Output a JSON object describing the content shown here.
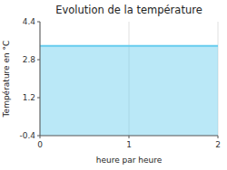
{
  "chart_data": {
    "type": "area",
    "title": "Evolution de la température",
    "x_label": "heure par heure",
    "y_label": "Température en °C",
    "x": [
      0,
      2
    ],
    "values": [
      3.38,
      3.38
    ],
    "color": "#66ccee",
    "xlim": [
      0,
      2
    ],
    "ylim": [
      -0.4,
      4.4
    ],
    "xticks": [
      0,
      1,
      2
    ],
    "yticks": [
      -0.4,
      1.2,
      2.8,
      4.4
    ],
    "grid": "x"
  }
}
